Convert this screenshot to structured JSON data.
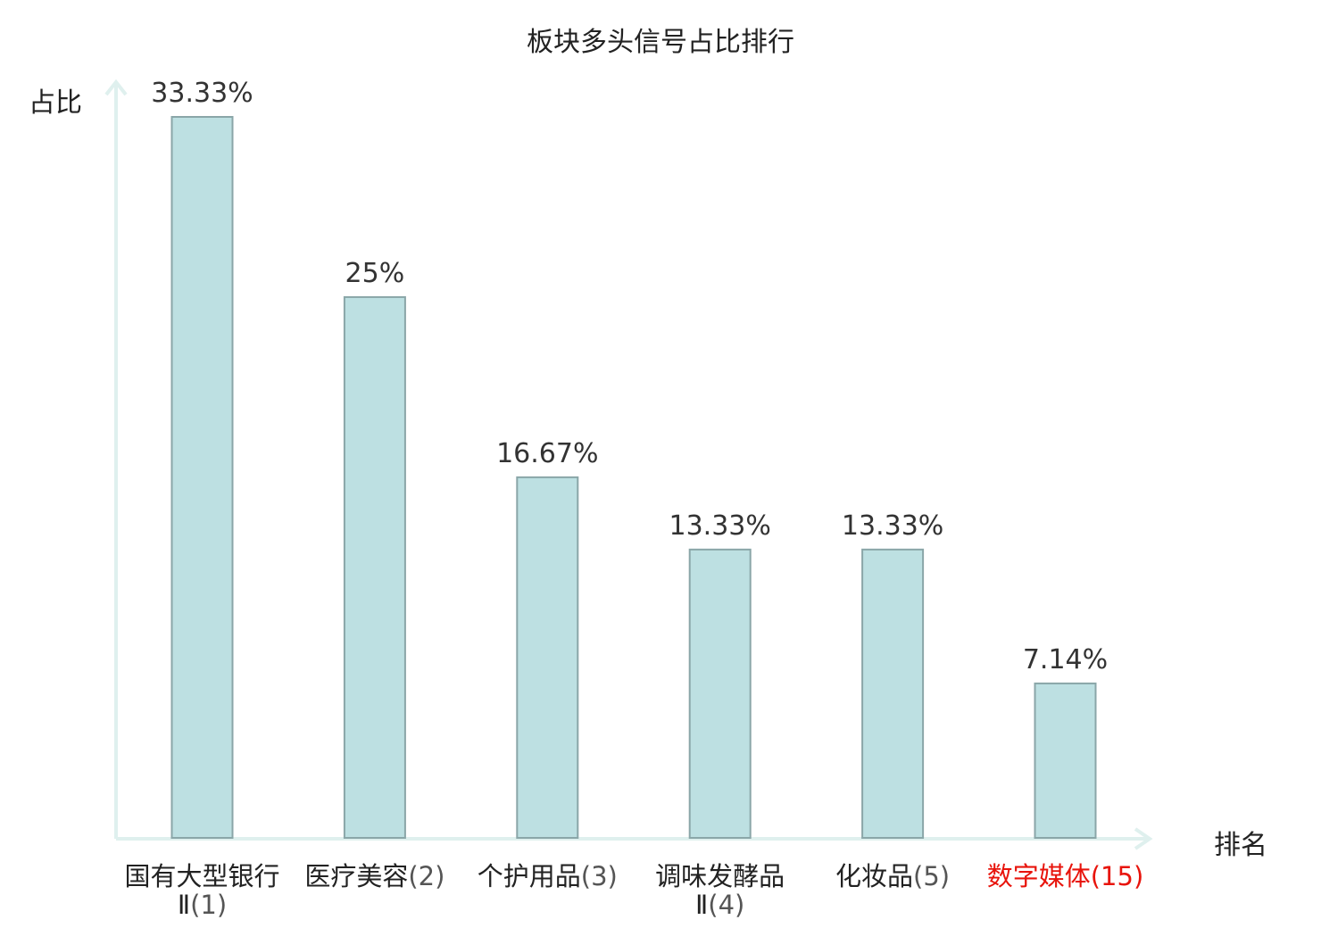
{
  "chart_data": {
    "type": "bar",
    "title": "板块多头信号占比排行",
    "ylabel": "占比",
    "xlabel": "排名",
    "ylim": [
      0,
      33.33
    ],
    "categories": [
      {
        "name": "国有大型银行Ⅱ",
        "rank": "(1)",
        "highlight": false
      },
      {
        "name": "医疗美容",
        "rank": "(2)",
        "highlight": false
      },
      {
        "name": "个护用品",
        "rank": "(3)",
        "highlight": false
      },
      {
        "name": "调味发酵品Ⅱ",
        "rank": "(4)",
        "highlight": false
      },
      {
        "name": "化妆品",
        "rank": "(5)",
        "highlight": false
      },
      {
        "name": "数字媒体",
        "rank": "(15)",
        "highlight": true
      }
    ],
    "values": [
      33.33,
      25,
      16.67,
      13.33,
      13.33,
      7.14
    ],
    "value_labels": [
      "33.33%",
      "25%",
      "16.67%",
      "13.33%",
      "13.33%",
      "7.14%"
    ],
    "colors": {
      "bar_fill": "#bde0e2",
      "bar_stroke": "#8aa6a8",
      "axis": "#dff0ee",
      "highlight": "#e8140c"
    }
  }
}
